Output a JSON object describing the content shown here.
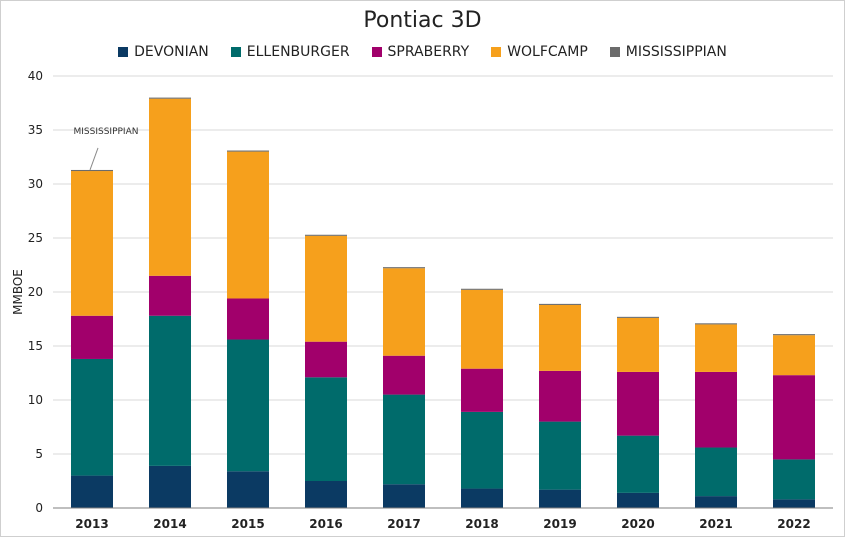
{
  "chart_data": {
    "type": "bar",
    "stacked": true,
    "title": "Pontiac 3D",
    "xlabel": "",
    "ylabel": "MMBOE",
    "ylim": [
      0,
      40
    ],
    "yticks": [
      0,
      5,
      10,
      15,
      20,
      25,
      30,
      35,
      40
    ],
    "grid": true,
    "legend_position": "top",
    "categories": [
      "2013",
      "2014",
      "2015",
      "2016",
      "2017",
      "2018",
      "2019",
      "2020",
      "2021",
      "2022"
    ],
    "series": [
      {
        "name": "DEVONIAN",
        "color": "#0b3a63",
        "values": [
          3.0,
          3.9,
          3.4,
          2.5,
          2.2,
          1.8,
          1.7,
          1.4,
          1.1,
          0.8
        ]
      },
      {
        "name": "ELLENBURGER",
        "color": "#006b6b",
        "values": [
          10.8,
          13.9,
          12.2,
          9.6,
          8.3,
          7.1,
          6.3,
          5.3,
          4.5,
          3.7
        ]
      },
      {
        "name": "SPRABERRY",
        "color": "#a1006b",
        "values": [
          4.0,
          3.7,
          3.8,
          3.3,
          3.6,
          4.0,
          4.7,
          5.9,
          7.0,
          7.8
        ]
      },
      {
        "name": "WOLFCAMP",
        "color": "#f6a01c",
        "values": [
          13.4,
          16.4,
          13.6,
          9.8,
          8.1,
          7.3,
          6.1,
          5.0,
          4.4,
          3.7
        ]
      },
      {
        "name": "MISSISSIPPIAN",
        "color": "#6b6b6b",
        "values": [
          0.1,
          0.1,
          0.1,
          0.1,
          0.1,
          0.1,
          0.1,
          0.1,
          0.1,
          0.1
        ]
      }
    ],
    "annotations": [
      {
        "text": "MISSISSIPPIAN",
        "category": "2013",
        "series": "MISSISSIPPIAN"
      }
    ]
  }
}
